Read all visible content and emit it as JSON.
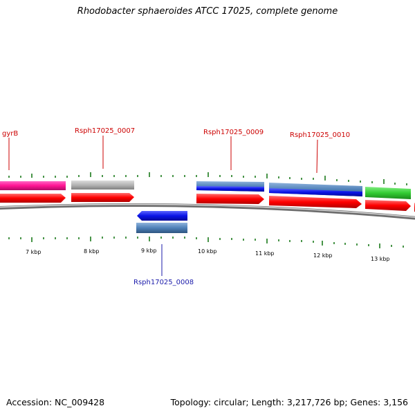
{
  "title": "Rhodobacter sphaeroides ATCC 17025, complete genome",
  "footer": {
    "accession": "Accession: NC_009428",
    "summary": "Topology: circular; Length: 3,217,726 bp; Genes: 3,156"
  },
  "colors": {
    "pink": "#ff1493",
    "gray": "#b4b4b4",
    "steelblue": "#4f81b8",
    "blue": "#0a14e6",
    "green": "#33cc33",
    "red": "#ff0000",
    "tick": "#1a7a1a",
    "backbone": "#8c8c8c",
    "label_top": "#cc0000",
    "label_bottom": "#1a1aaa"
  },
  "scale_labels": [
    {
      "id": "7",
      "text": "7 kbp"
    },
    {
      "id": "8",
      "text": "8 kbp"
    },
    {
      "id": "9",
      "text": "9 kbp"
    },
    {
      "id": "10",
      "text": "10 kbp"
    },
    {
      "id": "11",
      "text": "11 kbp"
    },
    {
      "id": "12",
      "text": "12 kbp"
    },
    {
      "id": "13",
      "text": "13 kbp"
    }
  ],
  "gene_labels": [
    {
      "id": "gyrB",
      "text": "gyrB"
    },
    {
      "id": "g0007",
      "text": "Rsph17025_0007"
    },
    {
      "id": "g0008",
      "text": "Rsph17025_0008"
    },
    {
      "id": "g0009",
      "text": "Rsph17025_0009"
    },
    {
      "id": "g0010",
      "text": "Rsph17025_0010"
    }
  ]
}
